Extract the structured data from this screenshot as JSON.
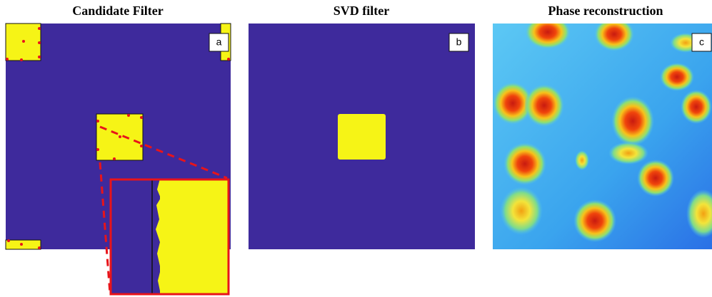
{
  "panels": [
    {
      "title": "Candidate Filter",
      "label": "a"
    },
    {
      "title": "SVD filter",
      "label": "b"
    },
    {
      "title": "Phase reconstruction",
      "label": "c"
    }
  ]
}
